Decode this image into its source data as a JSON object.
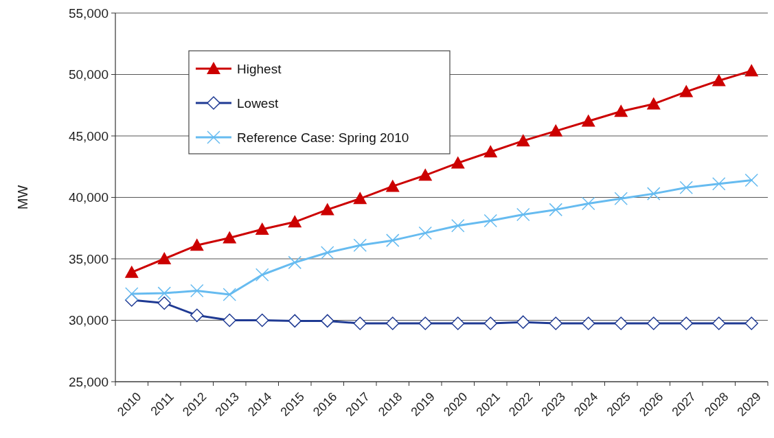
{
  "chart_data": {
    "type": "line",
    "ylabel": "MW",
    "categories": [
      "2010",
      "2011",
      "2012",
      "2013",
      "2014",
      "2015",
      "2016",
      "2017",
      "2018",
      "2019",
      "2020",
      "2021",
      "2022",
      "2023",
      "2024",
      "2025",
      "2026",
      "2027",
      "2028",
      "2029"
    ],
    "series": [
      {
        "name": "Highest",
        "color": "#cc0000",
        "marker": "triangle",
        "values": [
          33900,
          35000,
          36100,
          36700,
          37400,
          38000,
          39000,
          39900,
          40900,
          41800,
          42800,
          43700,
          44600,
          45400,
          46200,
          47000,
          47600,
          48600,
          49500,
          50300
        ]
      },
      {
        "name": "Lowest",
        "color": "#1f3a93",
        "marker": "diamond",
        "values": [
          31650,
          31400,
          30400,
          30000,
          30000,
          29950,
          29950,
          29750,
          29750,
          29750,
          29750,
          29750,
          29850,
          29750,
          29750,
          29750,
          29750,
          29750,
          29750,
          29750
        ]
      },
      {
        "name": "Reference Case: Spring 2010",
        "color": "#66bbf0",
        "marker": "cross",
        "values": [
          32150,
          32200,
          32400,
          32100,
          33700,
          34700,
          35500,
          36100,
          36500,
          37100,
          37700,
          38100,
          38600,
          39000,
          39500,
          39900,
          40300,
          40800,
          41100,
          41400
        ]
      }
    ],
    "ylim": [
      25000,
      55000
    ],
    "yticks": [
      {
        "value": 25000,
        "label": "25,000"
      },
      {
        "value": 30000,
        "label": "30,000"
      },
      {
        "value": 35000,
        "label": "35,000"
      },
      {
        "value": 40000,
        "label": "40,000"
      },
      {
        "value": 45000,
        "label": "45,000"
      },
      {
        "value": 50000,
        "label": "50,000"
      },
      {
        "value": 55000,
        "label": "55,000"
      }
    ],
    "grid": "y",
    "legend": "top left",
    "line_style": "solid"
  }
}
